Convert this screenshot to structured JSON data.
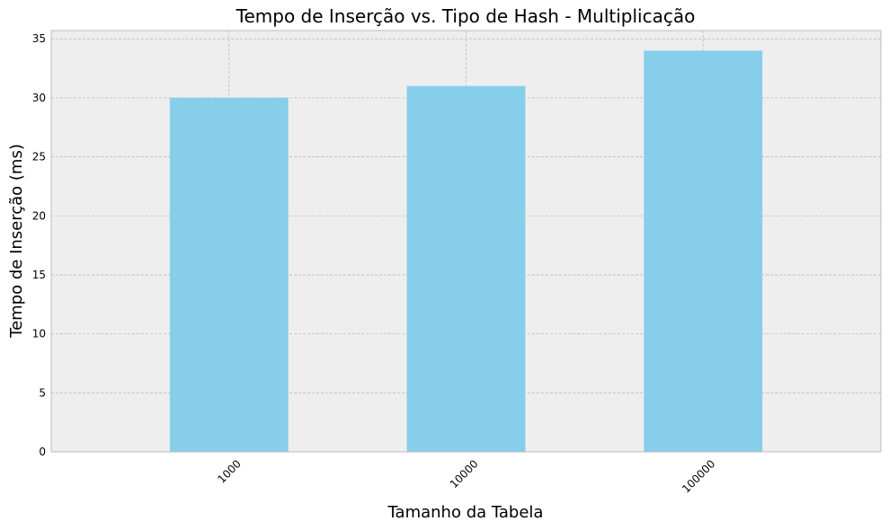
{
  "chart_data": {
    "type": "bar",
    "title": "Tempo de Inserção vs. Tipo de Hash - Multiplicação",
    "xlabel": "Tamanho da Tabela",
    "ylabel": "Tempo de Inserção (ms)",
    "categories": [
      "1000",
      "10000",
      "100000"
    ],
    "values": [
      30,
      31,
      34
    ],
    "ylim": [
      0,
      35.7
    ],
    "yticks": [
      "0",
      "5",
      "10",
      "15",
      "20",
      "25",
      "30",
      "35"
    ],
    "grid": true,
    "bar_color": "#87CEEB",
    "background_color": "#EEEEEE",
    "grid_color": "#BBBBBB"
  }
}
